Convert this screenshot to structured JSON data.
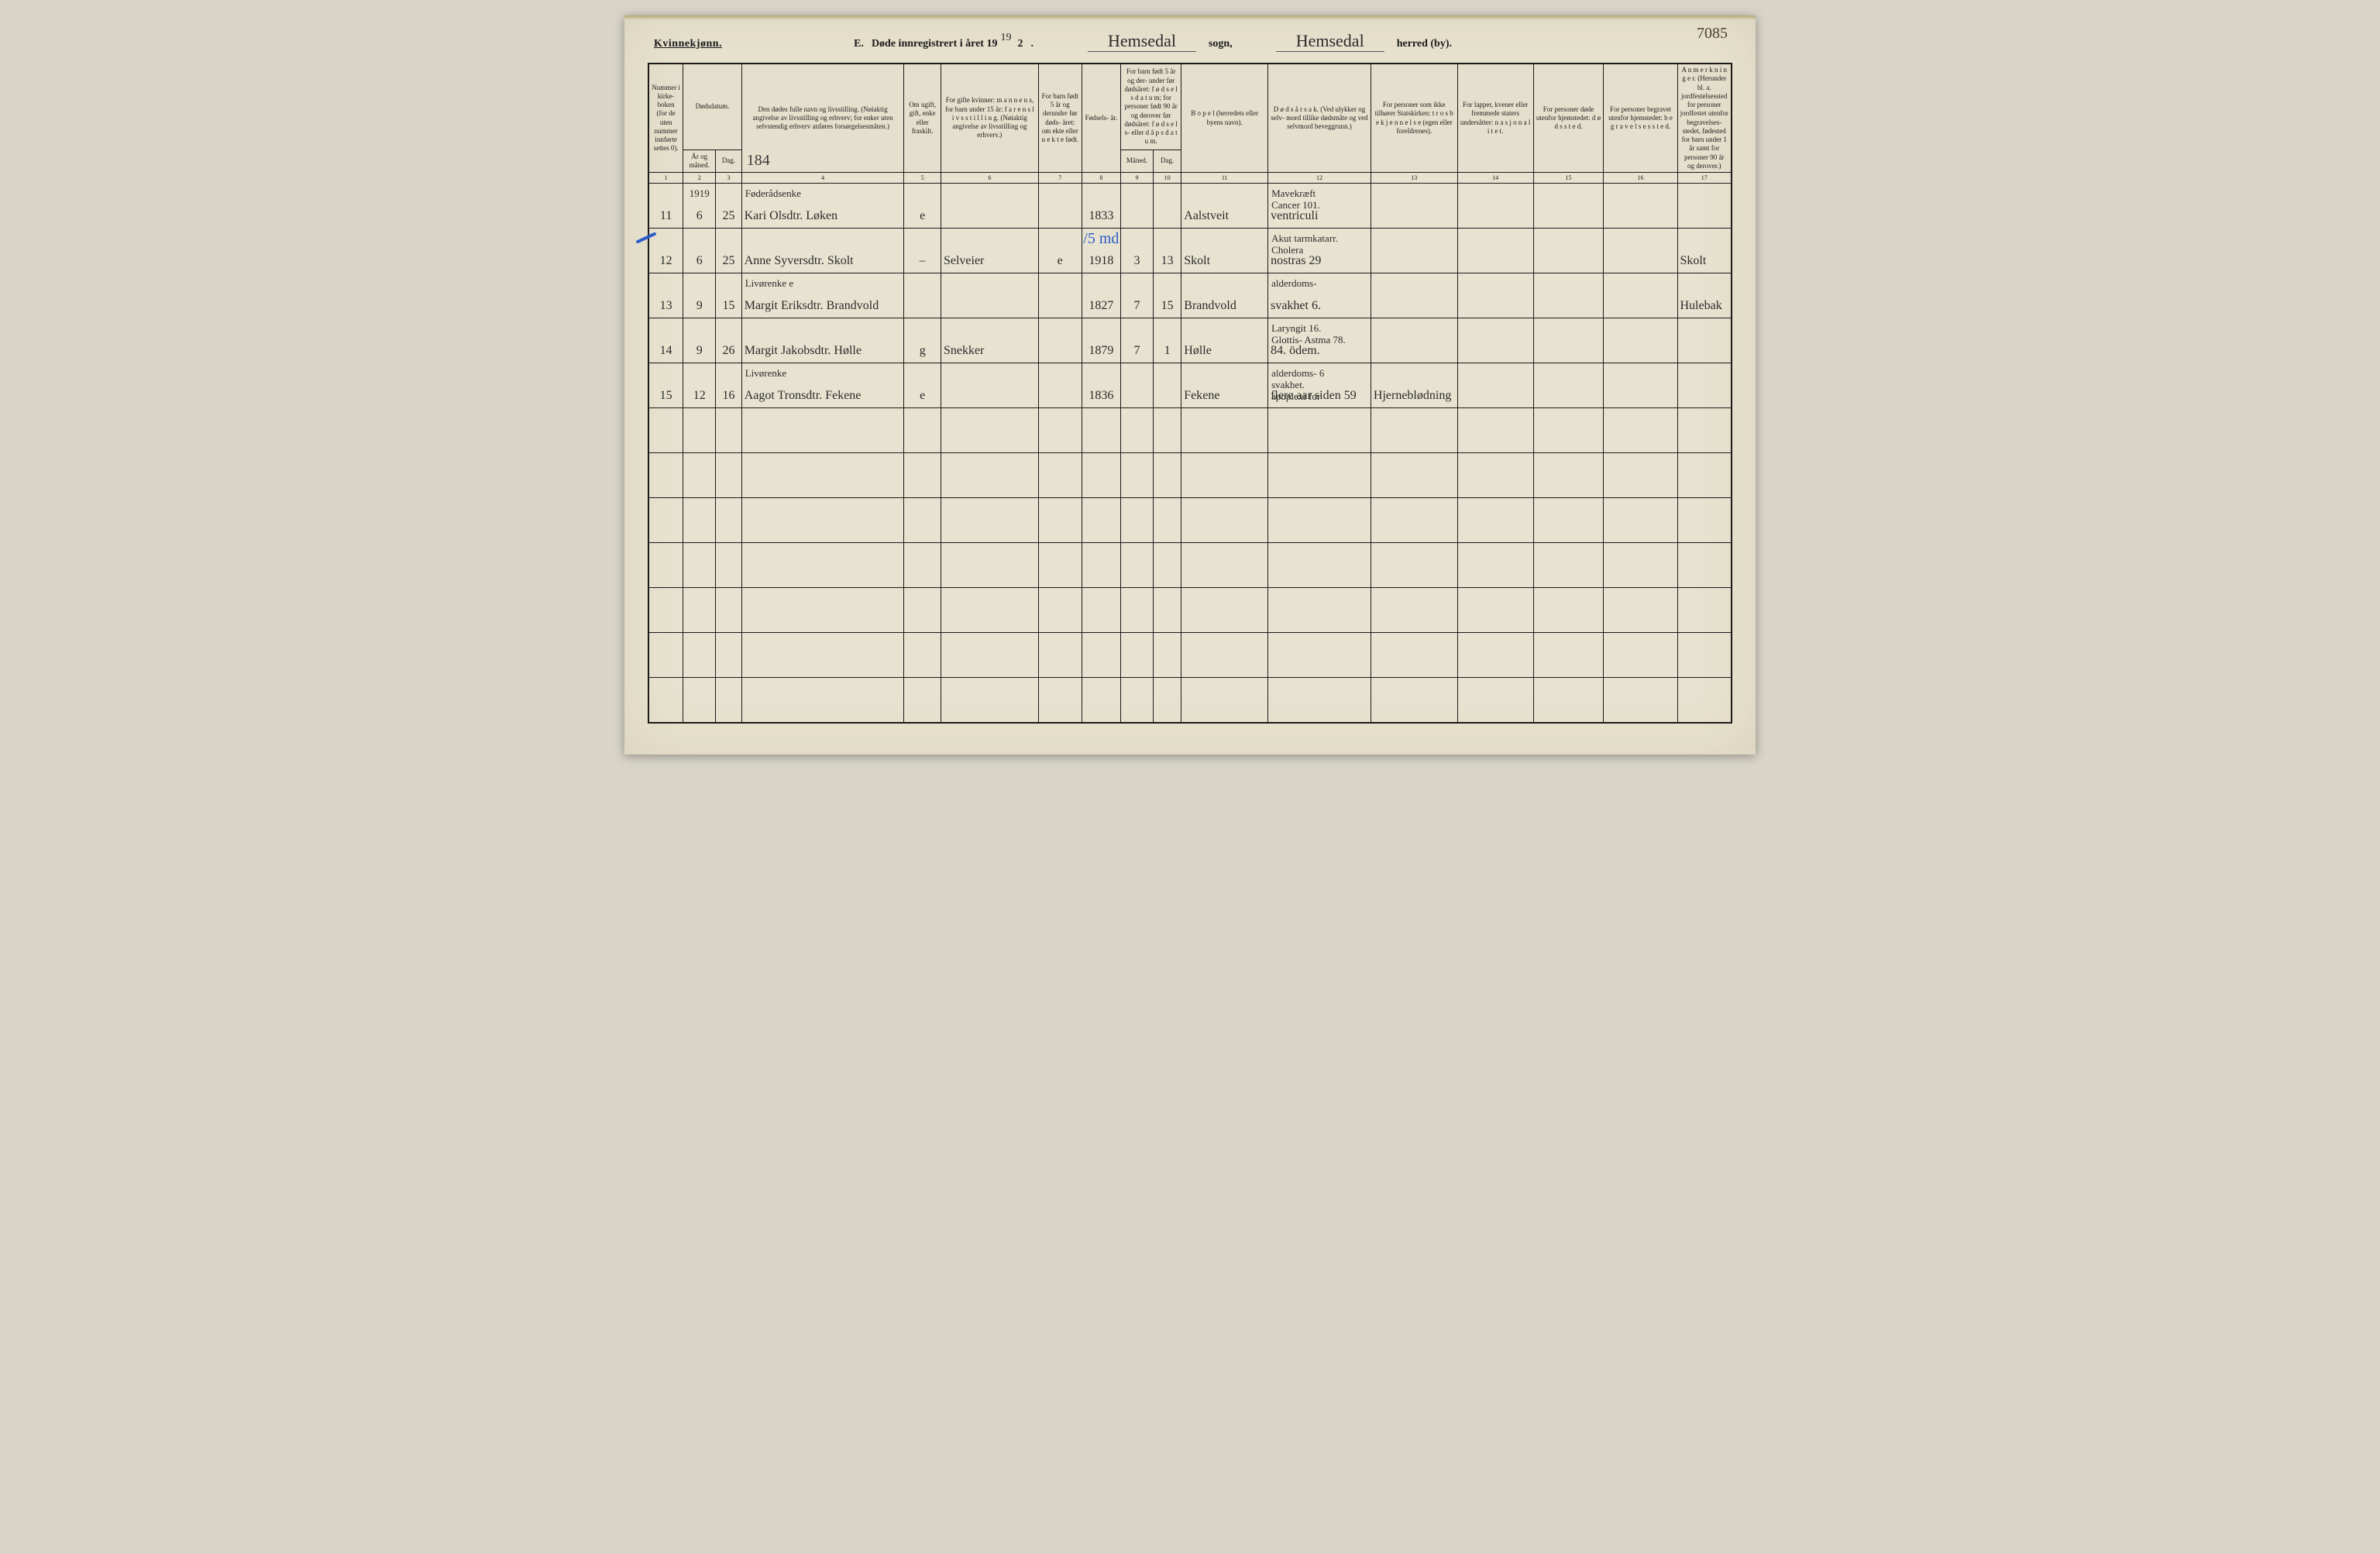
{
  "top_right_annotation": "7085",
  "gender_heading": "Kvinnekjønn.",
  "form_letter": "E.",
  "form_title_prefix": "Døde innregistrert i året 19",
  "year_handwritten": "19",
  "year_printed_suffix": "2",
  "period": ".",
  "sogn_value": "Hemsedal",
  "sogn_label": "sogn,",
  "herred_value": "Hemsedal",
  "herred_label": "herred (by).",
  "page_number_handwritten": "184",
  "columns": {
    "c1": "Nummer i kirke-\nboken\n(for de\nuten\nnummer\ninnførte\nsettes\n0).",
    "c2_group": "Dødsdatum.",
    "c2": "År\nog\nmåned.",
    "c3": "Dag.",
    "c4": "Den dødes fulle navn og livsstilling.\n(Nøiaktig angivelse av livsstilling og erhverv;\nfor enker uten selvstendig erhverv\nanføres forsørgelsesmåten.)",
    "c5": "Om\nugift,\ngift,\nenke\neller\nfraskilt.",
    "c6": "For gifte kvinner:\nm a n n e n s,\nfor barn under 15 år:\nf a r e n s  l i v s s t i l l i n g.\n(Nøiaktig angivelse av\nlivsstilling og erhverv.)",
    "c7": "For barn\nfødt\n5 år og\nderunder\nfør døds-\nåret:\nom ekte\neller\nu e k t e\nfødt.",
    "c8": "Fødsels-\når.",
    "c9_group": "For barn født\n5 år og der-\nunder før\ndødsåret:\nf ø d s e l s d a t u m;\nfor personer\nfødt 90 år\nog derover før\ndødsåret:\nf ø d s e l s-  eller\nd å p s d a t u m.",
    "c9": "Måned.",
    "c10": "Dag.",
    "c11": "B o p e l\n(herredets eller byens\nnavn).",
    "c12": "D ø d s å r s a k.\n(Ved ulykker og selv-\nmord tillike dødsmåte\nog ved selvmord\nbeveggrunn.)",
    "c13": "For personer\nsom ikke tilhører\nStatskirken:\nt r o s b e k j e n n e l s e\n(egen eller foreldrenes).",
    "c14": "For lapper, kvener\neller fremmede\nstaters undersåtter:\nn a s j o n a l i t e t.",
    "c15": "For personer døde\nutenfor hjemstedet:\nd ø d s s t e d.",
    "c16": "For personer begravet\nutenfor hjemstedet:\nb e g r a v e l s e s s t e d.",
    "c17": "A n m e r k n i n g e r.\n(Herunder bl. a.\njordfestelsessted for\npersoner jordfestet\nutenfor begravelses-\nstedet, fødested for\nbarn under 1 år\nsamt for personer\n90 år og derover.)"
  },
  "colnums": [
    "1",
    "2",
    "3",
    "4",
    "5",
    "6",
    "7",
    "8",
    "9",
    "10",
    "11",
    "12",
    "13",
    "14",
    "15",
    "16",
    "17"
  ],
  "rows": [
    {
      "num": "11",
      "year_top": "1919",
      "year": "6",
      "day": "25",
      "name_top": "Føderådsenke",
      "name": "Kari Olsdtr. Løken",
      "status": "e",
      "spouse": "",
      "legit": "",
      "birth": "1833",
      "bm": "",
      "bd": "",
      "residence": "Aalstveit",
      "cause_top": "Mavekræft\nCancer   101.",
      "cause": "ventriculi",
      "c13": "",
      "c14": "",
      "c15": "",
      "c16": "",
      "c17": ""
    },
    {
      "num": "12",
      "year": "6",
      "day": "25",
      "name": "Anne Syversdtr. Skolt",
      "status": "–",
      "spouse": "Selveier",
      "legit": "e",
      "birth_top_blue": "/5 md",
      "birth": "1918",
      "bm": "3",
      "bd": "13",
      "residence": "Skolt",
      "cause_top": "Akut tarmkatarr.\nCholera",
      "cause": "nostras   29",
      "c13": "",
      "c14": "",
      "c15": "",
      "c16": "",
      "c17": "Skolt"
    },
    {
      "num": "13",
      "year": "9",
      "day": "15",
      "name_top": "Livørenke   e",
      "name": "Margit Eriksdtr. Brandvold",
      "status": "",
      "spouse": "",
      "legit": "",
      "birth": "1827",
      "bm": "7",
      "bd": "15",
      "residence": "Brandvold",
      "cause_top": "alderdoms-",
      "cause": "svakhet        6.",
      "c13": "",
      "c14": "",
      "c15": "",
      "c16": "",
      "c17": "Hulebak"
    },
    {
      "num": "14",
      "year": "9",
      "day": "26",
      "name": "Margit Jakobsdtr. Hølle",
      "status": "g",
      "spouse": "Snekker",
      "legit": "",
      "birth": "1879",
      "bm": "7",
      "bd": "1",
      "residence": "Hølle",
      "cause_top": "Laryngit 16.\nGlottis-  Astma 78.",
      "cause": "84. ödem.",
      "c13": "",
      "c14": "",
      "c15": "",
      "c16": "",
      "c17": ""
    },
    {
      "num": "15",
      "year": "12",
      "day": "16",
      "name_top": "Livørenke",
      "name": "Aagot Tronsdtr. Fekene",
      "status": "e",
      "spouse": "",
      "legit": "",
      "birth": "1836",
      "bm": "",
      "bd": "",
      "residence": "Fekene",
      "cause_top": "alderdoms- 6\nsvakhet.\napoplexi for",
      "cause": "flere aar siden   59",
      "c13": "Hjerneblødning",
      "c14": "",
      "c15": "",
      "c16": "",
      "c17": ""
    }
  ],
  "colors": {
    "paper": "#e8e3d0",
    "ink": "#1a1a1a",
    "script": "#2a2a2a",
    "blue": "#2a5cc8"
  },
  "col_widths_pct": [
    3.2,
    3.0,
    2.4,
    15.0,
    3.4,
    9.0,
    4.0,
    3.6,
    3.0,
    2.6,
    8.0,
    9.5,
    8.0,
    7.0,
    6.5,
    6.8,
    5.0
  ]
}
